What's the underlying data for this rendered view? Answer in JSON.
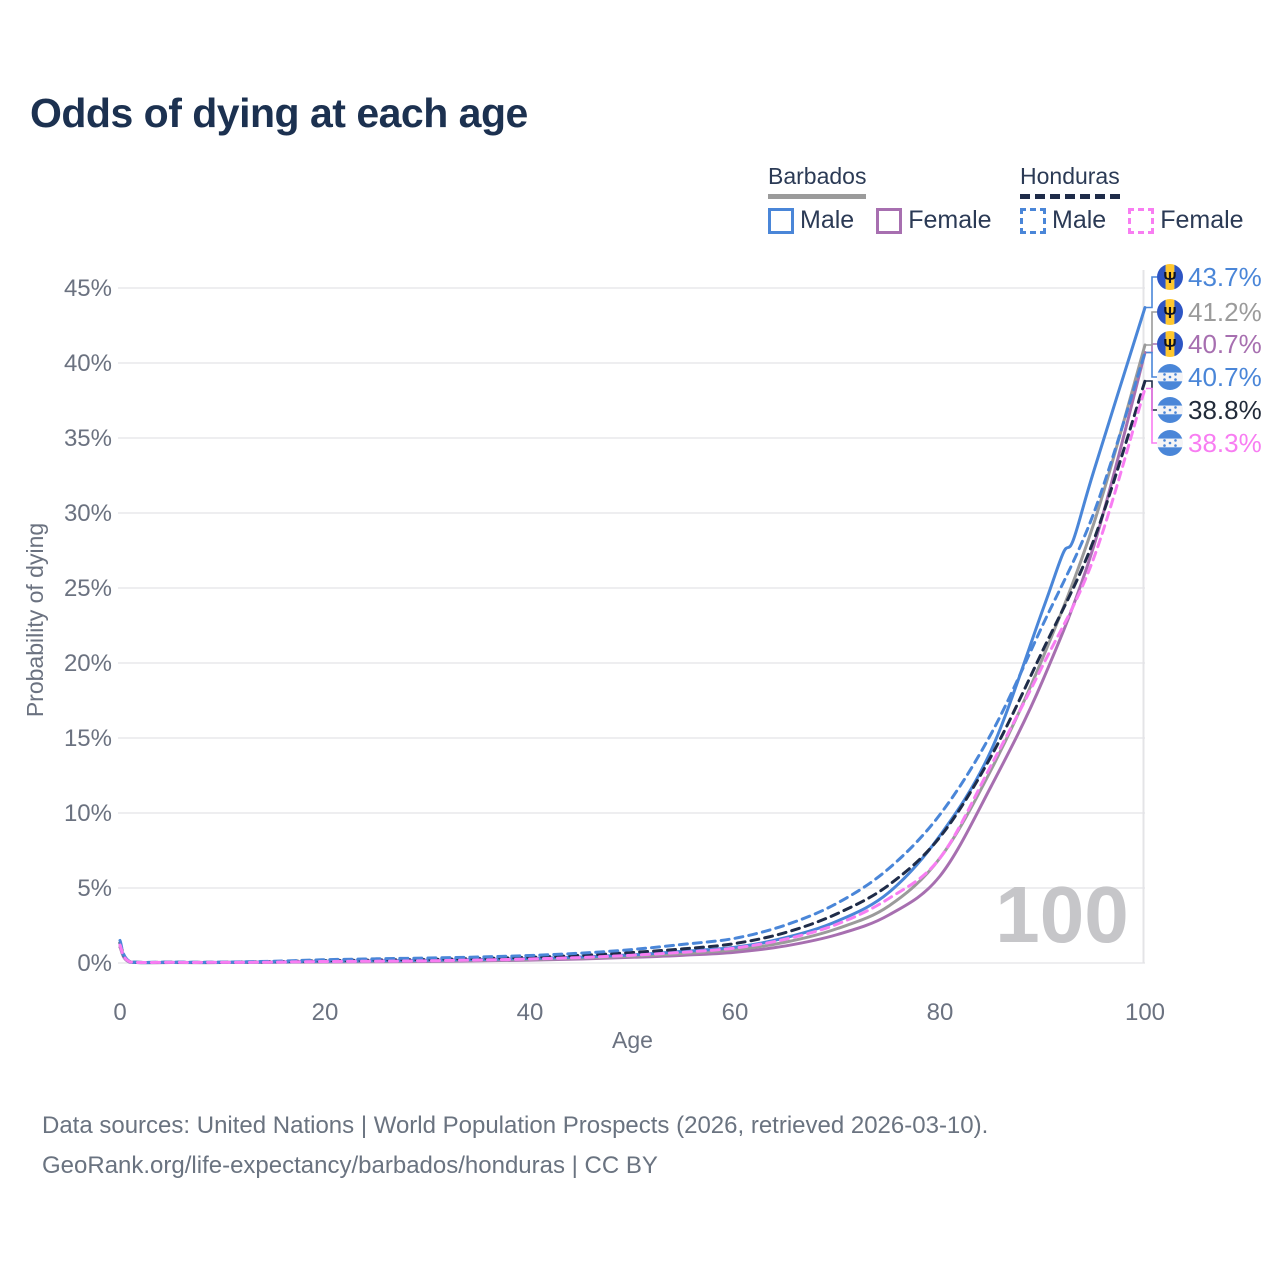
{
  "title": "Odds of dying at each age",
  "legend": {
    "groups": [
      {
        "country": "Barbados",
        "underline_style": "solid",
        "underline_color": "#9b9b9b",
        "items": [
          {
            "label": "Male",
            "color": "#4a86d8",
            "dashed": false
          },
          {
            "label": "Female",
            "color": "#a76fb0",
            "dashed": false
          }
        ]
      },
      {
        "country": "Honduras",
        "underline_style": "dashed",
        "underline_color": "#1f2c49",
        "items": [
          {
            "label": "Male",
            "color": "#4a86d8",
            "dashed": true
          },
          {
            "label": "Female",
            "color": "#f87df2",
            "dashed": true
          }
        ]
      }
    ]
  },
  "chart_data": {
    "type": "line",
    "title": "Odds of dying at each age",
    "xlabel": "Age",
    "ylabel": "Probability of dying",
    "xlim": [
      0,
      100
    ],
    "ylim_percent": [
      0,
      46
    ],
    "x_ticks": [
      0,
      20,
      40,
      60,
      80,
      100
    ],
    "y_ticks_percent": [
      0,
      5,
      10,
      15,
      20,
      25,
      30,
      35,
      40,
      45
    ],
    "grid": "horizontal",
    "hover_marker_age": "100",
    "legend_position": "top-right",
    "series": [
      {
        "id": "barbados-female",
        "name": "Barbados Female",
        "country": "Barbados",
        "sex": "Female",
        "color": "#a76fb0",
        "line_style": "solid",
        "flag": "barbados",
        "end_label": "40.7%",
        "label_order": 3,
        "points": [
          [
            0,
            1.05
          ],
          [
            1,
            0.05
          ],
          [
            5,
            0.03
          ],
          [
            10,
            0.03
          ],
          [
            15,
            0.05
          ],
          [
            20,
            0.07
          ],
          [
            25,
            0.08
          ],
          [
            30,
            0.1
          ],
          [
            35,
            0.14
          ],
          [
            40,
            0.19
          ],
          [
            45,
            0.27
          ],
          [
            50,
            0.38
          ],
          [
            55,
            0.52
          ],
          [
            60,
            0.72
          ],
          [
            65,
            1.15
          ],
          [
            70,
            1.9
          ],
          [
            75,
            3.2
          ],
          [
            80,
            5.8
          ],
          [
            85,
            11.8
          ],
          [
            90,
            18.8
          ],
          [
            95,
            27.8
          ],
          [
            100,
            40.7
          ]
        ]
      },
      {
        "id": "barbados-both",
        "name": "Barbados (both sexes)",
        "country": "Barbados",
        "sex": "Both",
        "color": "#9b9b9b",
        "line_style": "solid",
        "flag": "barbados",
        "end_label": "41.2%",
        "label_order": 2,
        "points": [
          [
            0,
            1.2
          ],
          [
            1,
            0.05
          ],
          [
            5,
            0.03
          ],
          [
            10,
            0.03
          ],
          [
            15,
            0.06
          ],
          [
            20,
            0.09
          ],
          [
            25,
            0.11
          ],
          [
            30,
            0.14
          ],
          [
            35,
            0.18
          ],
          [
            40,
            0.24
          ],
          [
            45,
            0.33
          ],
          [
            50,
            0.46
          ],
          [
            55,
            0.63
          ],
          [
            60,
            0.88
          ],
          [
            65,
            1.4
          ],
          [
            70,
            2.3
          ],
          [
            75,
            3.8
          ],
          [
            80,
            7.0
          ],
          [
            85,
            12.9
          ],
          [
            90,
            20.3
          ],
          [
            95,
            29.3
          ],
          [
            100,
            41.2
          ]
        ]
      },
      {
        "id": "barbados-male",
        "name": "Barbados Male",
        "country": "Barbados",
        "sex": "Male",
        "color": "#4a86d8",
        "line_style": "solid",
        "flag": "barbados",
        "end_label": "43.7%",
        "label_order": 1,
        "points": [
          [
            0,
            1.3
          ],
          [
            1,
            0.06
          ],
          [
            5,
            0.04
          ],
          [
            10,
            0.04
          ],
          [
            15,
            0.07
          ],
          [
            20,
            0.12
          ],
          [
            25,
            0.15
          ],
          [
            30,
            0.18
          ],
          [
            35,
            0.23
          ],
          [
            40,
            0.3
          ],
          [
            45,
            0.4
          ],
          [
            50,
            0.55
          ],
          [
            55,
            0.78
          ],
          [
            60,
            1.05
          ],
          [
            65,
            1.7
          ],
          [
            70,
            2.8
          ],
          [
            75,
            4.7
          ],
          [
            80,
            8.5
          ],
          [
            85,
            14.2
          ],
          [
            90,
            23.5
          ],
          [
            92,
            27.3
          ],
          [
            93,
            28.2
          ],
          [
            95,
            32.8
          ],
          [
            100,
            43.7
          ]
        ]
      },
      {
        "id": "honduras-both",
        "name": "Honduras (both sexes)",
        "country": "Honduras",
        "sex": "Both",
        "color": "#1f2c49",
        "line_style": "dashed",
        "flag": "honduras",
        "end_label": "38.8%",
        "label_color": "#222b3a",
        "label_order": 5,
        "points": [
          [
            0,
            1.35
          ],
          [
            1,
            0.08
          ],
          [
            5,
            0.05
          ],
          [
            10,
            0.05
          ],
          [
            15,
            0.09
          ],
          [
            20,
            0.16
          ],
          [
            25,
            0.2
          ],
          [
            30,
            0.24
          ],
          [
            35,
            0.3
          ],
          [
            40,
            0.38
          ],
          [
            45,
            0.51
          ],
          [
            50,
            0.7
          ],
          [
            55,
            0.95
          ],
          [
            60,
            1.3
          ],
          [
            65,
            2.05
          ],
          [
            70,
            3.3
          ],
          [
            75,
            5.2
          ],
          [
            80,
            8.4
          ],
          [
            85,
            13.8
          ],
          [
            90,
            20.8
          ],
          [
            95,
            28.2
          ],
          [
            100,
            38.8
          ]
        ]
      },
      {
        "id": "honduras-male",
        "name": "Honduras Male",
        "country": "Honduras",
        "sex": "Male",
        "color": "#4a86d8",
        "line_style": "dashed",
        "flag": "honduras",
        "end_label": "40.7%",
        "label_order": 4,
        "points": [
          [
            0,
            1.5
          ],
          [
            1,
            0.09
          ],
          [
            5,
            0.06
          ],
          [
            10,
            0.06
          ],
          [
            15,
            0.12
          ],
          [
            20,
            0.22
          ],
          [
            25,
            0.28
          ],
          [
            30,
            0.33
          ],
          [
            35,
            0.4
          ],
          [
            40,
            0.5
          ],
          [
            45,
            0.66
          ],
          [
            50,
            0.9
          ],
          [
            55,
            1.25
          ],
          [
            60,
            1.65
          ],
          [
            65,
            2.55
          ],
          [
            70,
            4.0
          ],
          [
            75,
            6.3
          ],
          [
            80,
            9.9
          ],
          [
            85,
            15.3
          ],
          [
            90,
            22.5
          ],
          [
            95,
            30.0
          ],
          [
            100,
            40.7
          ]
        ]
      },
      {
        "id": "honduras-female",
        "name": "Honduras Female",
        "country": "Honduras",
        "sex": "Female",
        "color": "#f87df2",
        "line_style": "dashed",
        "flag": "honduras",
        "end_label": "38.3%",
        "label_order": 6,
        "points": [
          [
            0,
            1.2
          ],
          [
            1,
            0.07
          ],
          [
            5,
            0.04
          ],
          [
            10,
            0.04
          ],
          [
            15,
            0.06
          ],
          [
            20,
            0.1
          ],
          [
            25,
            0.12
          ],
          [
            30,
            0.15
          ],
          [
            35,
            0.2
          ],
          [
            40,
            0.27
          ],
          [
            45,
            0.37
          ],
          [
            50,
            0.52
          ],
          [
            55,
            0.72
          ],
          [
            60,
            1.0
          ],
          [
            65,
            1.6
          ],
          [
            70,
            2.6
          ],
          [
            75,
            4.3
          ],
          [
            80,
            7.0
          ],
          [
            85,
            13.2
          ],
          [
            90,
            19.8
          ],
          [
            95,
            27.0
          ],
          [
            100,
            38.3
          ]
        ]
      }
    ]
  },
  "colors": {
    "title": "#1c3150",
    "axis_text": "#6b7280",
    "gridline": "#e9e9ec",
    "watermark": "#c6c6c9",
    "barbados_flag_blue": "#2d55c4",
    "barbados_flag_gold": "#ffc72e",
    "honduras_flag_blue": "#4a86d8"
  },
  "footer": {
    "line1": "Data sources: United Nations | World Population Prospects (2026, retrieved 2026-03-10).",
    "line2": "GeoRank.org/life-expectancy/barbados/honduras | CC BY"
  }
}
